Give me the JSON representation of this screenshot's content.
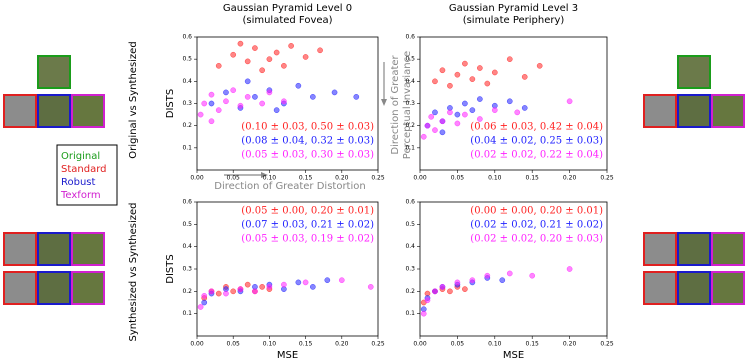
{
  "figure": {
    "row_labels": [
      "Original vs Synthesized",
      "Synthesized vs Synthesized"
    ],
    "legend": [
      {
        "name": "Original",
        "color": "#1a9c1a"
      },
      {
        "name": "Standard",
        "color": "#e02020"
      },
      {
        "name": "Robust",
        "color": "#1a1acc"
      },
      {
        "name": "Texform",
        "color": "#d020d0"
      }
    ],
    "annotations": [
      "Direction of Greater Distortion",
      "Direction of Greater",
      "Perceptual Invariance"
    ]
  },
  "chart_data": [
    {
      "type": "scatter",
      "title": "Gaussian Pyramid Level 0",
      "subtitle": "(simulated Fovea)",
      "ylabel": "DISTS",
      "xlim": [
        0,
        0.25
      ],
      "ylim": [
        0,
        0.6
      ],
      "xticks": [
        {
          "value": 0,
          "label": "0.00"
        },
        0.05,
        {
          "value": 0.1,
          "label": "0.10"
        },
        0.15,
        {
          "value": 0.2,
          "label": "0.20"
        },
        0.25
      ],
      "yticks": [
        0.1,
        0.2,
        0.3,
        0.4,
        0.5,
        0.6
      ],
      "series": [
        {
          "color": "#ff2020",
          "x": [
            0.03,
            0.05,
            0.07,
            0.08,
            0.1,
            0.11,
            0.12,
            0.13,
            0.15,
            0.17,
            0.09,
            0.06
          ],
          "values": [
            0.47,
            0.52,
            0.49,
            0.55,
            0.5,
            0.53,
            0.47,
            0.56,
            0.51,
            0.54,
            0.45,
            0.57
          ]
        },
        {
          "color": "#2020ff",
          "x": [
            0.02,
            0.04,
            0.06,
            0.08,
            0.1,
            0.12,
            0.14,
            0.16,
            0.19,
            0.07,
            0.11,
            0.22
          ],
          "values": [
            0.3,
            0.35,
            0.28,
            0.33,
            0.36,
            0.3,
            0.38,
            0.33,
            0.35,
            0.4,
            0.27,
            0.33
          ]
        },
        {
          "color": "#ff20ff",
          "x": [
            0.005,
            0.01,
            0.02,
            0.03,
            0.04,
            0.05,
            0.06,
            0.07,
            0.09,
            0.1,
            0.12,
            0.02
          ],
          "values": [
            0.25,
            0.3,
            0.34,
            0.27,
            0.31,
            0.36,
            0.29,
            0.33,
            0.3,
            0.35,
            0.31,
            0.22
          ]
        }
      ],
      "stats": [
        "(0.10 ± 0.03, 0.50 ± 0.03)",
        "(0.08 ± 0.04, 0.32 ± 0.03)",
        "(0.05 ± 0.03, 0.30 ± 0.03)"
      ]
    },
    {
      "type": "scatter",
      "title": "Gaussian Pyramid Level 3",
      "subtitle": "(simulate Periphery)",
      "xlim": [
        0,
        0.25
      ],
      "ylim": [
        0,
        0.6
      ],
      "xticks": [
        {
          "value": 0,
          "label": "0.00"
        },
        0.05,
        {
          "value": 0.1,
          "label": "0.10"
        },
        0.15,
        {
          "value": 0.2,
          "label": "0.20"
        },
        0.25
      ],
      "yticks": [
        0.1,
        0.2,
        0.3,
        0.4,
        0.5,
        0.6
      ],
      "series": [
        {
          "color": "#ff2020",
          "x": [
            0.02,
            0.03,
            0.04,
            0.05,
            0.06,
            0.07,
            0.08,
            0.09,
            0.1,
            0.12,
            0.14,
            0.16
          ],
          "values": [
            0.4,
            0.45,
            0.38,
            0.43,
            0.48,
            0.41,
            0.46,
            0.39,
            0.44,
            0.5,
            0.42,
            0.47
          ]
        },
        {
          "color": "#2020ff",
          "x": [
            0.01,
            0.02,
            0.03,
            0.04,
            0.05,
            0.06,
            0.07,
            0.08,
            0.1,
            0.12,
            0.14,
            0.03
          ],
          "values": [
            0.2,
            0.26,
            0.22,
            0.28,
            0.25,
            0.3,
            0.27,
            0.32,
            0.29,
            0.31,
            0.28,
            0.17
          ]
        },
        {
          "color": "#ff20ff",
          "x": [
            0.005,
            0.01,
            0.015,
            0.02,
            0.03,
            0.04,
            0.05,
            0.06,
            0.08,
            0.1,
            0.13,
            0.2
          ],
          "values": [
            0.15,
            0.2,
            0.24,
            0.18,
            0.22,
            0.26,
            0.21,
            0.25,
            0.23,
            0.27,
            0.26,
            0.31
          ]
        }
      ],
      "stats": [
        "(0.06 ± 0.03, 0.42 ± 0.04)",
        "(0.04 ± 0.02, 0.25 ± 0.03)",
        "(0.02 ± 0.02, 0.22 ± 0.04)"
      ]
    },
    {
      "type": "scatter",
      "xlabel": "MSE",
      "ylabel": "DISTS",
      "xlim": [
        0,
        0.25
      ],
      "ylim": [
        0,
        0.6
      ],
      "xticks": [
        {
          "value": 0,
          "label": "0.00"
        },
        0.05,
        {
          "value": 0.1,
          "label": "0.10"
        },
        0.15,
        {
          "value": 0.2,
          "label": "0.20"
        },
        0.25
      ],
      "yticks": [
        0.1,
        0.2,
        0.3,
        0.4,
        0.5,
        0.6
      ],
      "series": [
        {
          "color": "#ff2020",
          "x": [
            0.01,
            0.02,
            0.03,
            0.04,
            0.05,
            0.06,
            0.07,
            0.08,
            0.09,
            0.1
          ],
          "values": [
            0.17,
            0.2,
            0.19,
            0.22,
            0.2,
            0.21,
            0.23,
            0.2,
            0.22,
            0.21
          ]
        },
        {
          "color": "#2020ff",
          "x": [
            0.01,
            0.02,
            0.04,
            0.06,
            0.08,
            0.1,
            0.12,
            0.14,
            0.16,
            0.18
          ],
          "values": [
            0.15,
            0.19,
            0.21,
            0.2,
            0.22,
            0.23,
            0.21,
            0.24,
            0.22,
            0.25
          ]
        },
        {
          "color": "#ff20ff",
          "x": [
            0.005,
            0.01,
            0.02,
            0.04,
            0.06,
            0.08,
            0.1,
            0.12,
            0.15,
            0.2,
            0.24
          ],
          "values": [
            0.13,
            0.18,
            0.2,
            0.19,
            0.21,
            0.2,
            0.22,
            0.23,
            0.24,
            0.25,
            0.22
          ]
        }
      ],
      "stats": [
        "(0.05 ± 0.00, 0.20 ± 0.01)",
        "(0.07 ± 0.03, 0.21 ± 0.02)",
        "(0.05 ± 0.03, 0.19 ± 0.02)"
      ]
    },
    {
      "type": "scatter",
      "xlabel": "MSE",
      "xlim": [
        0,
        0.25
      ],
      "ylim": [
        0,
        0.6
      ],
      "xticks": [
        {
          "value": 0,
          "label": "0.00"
        },
        0.05,
        {
          "value": 0.1,
          "label": "0.10"
        },
        0.15,
        {
          "value": 0.2,
          "label": "0.20"
        },
        0.25
      ],
      "yticks": [
        0.1,
        0.2,
        0.3,
        0.4,
        0.5,
        0.6
      ],
      "series": [
        {
          "color": "#ff2020",
          "x": [
            0.005,
            0.01,
            0.02,
            0.03,
            0.04,
            0.05,
            0.06
          ],
          "values": [
            0.15,
            0.19,
            0.2,
            0.21,
            0.2,
            0.22,
            0.21
          ]
        },
        {
          "color": "#2020ff",
          "x": [
            0.005,
            0.01,
            0.02,
            0.03,
            0.05,
            0.07,
            0.09,
            0.11
          ],
          "values": [
            0.12,
            0.17,
            0.2,
            0.22,
            0.23,
            0.24,
            0.26,
            0.25
          ]
        },
        {
          "color": "#ff20ff",
          "x": [
            0.005,
            0.01,
            0.02,
            0.03,
            0.05,
            0.07,
            0.09,
            0.12,
            0.15,
            0.2
          ],
          "values": [
            0.1,
            0.16,
            0.2,
            0.22,
            0.24,
            0.25,
            0.27,
            0.28,
            0.27,
            0.3
          ]
        }
      ],
      "stats": [
        "(0.00 ± 0.00, 0.20 ± 0.01)",
        "(0.02 ± 0.02, 0.21 ± 0.02)",
        "(0.02 ± 0.02, 0.20 ± 0.03)"
      ]
    }
  ]
}
